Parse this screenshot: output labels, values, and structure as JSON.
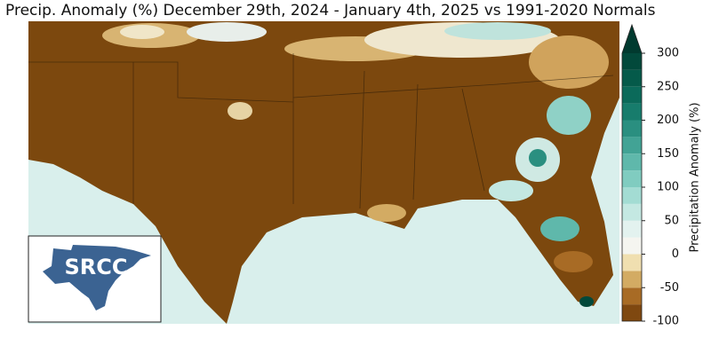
{
  "title": "Precip. Anomaly (%) December 29th, 2024 - January 4th, 2025 vs 1991-2020 Normals",
  "colorbar": {
    "label": "Precipitation Anomaly (%)",
    "lim": [
      -100,
      300
    ],
    "ticks": [
      -100,
      -50,
      0,
      50,
      100,
      150,
      200,
      250,
      300
    ],
    "levels": [
      -100,
      -75,
      -50,
      -25,
      0,
      25,
      50,
      75,
      100,
      125,
      150,
      175,
      200,
      225,
      250,
      275,
      300
    ],
    "colors": [
      "#7f4810",
      "#a86b25",
      "#d3ab63",
      "#f0dfb0",
      "#f5f5f0",
      "#e3f2ef",
      "#c4e8e2",
      "#a3dcd3",
      "#80ccc0",
      "#5fb8ab",
      "#42a395",
      "#2a8f80",
      "#177c6c",
      "#0b6a5a",
      "#055a4a",
      "#02493b"
    ],
    "extend_color": "#013a2f"
  },
  "logo": {
    "text": "SRCC"
  }
}
